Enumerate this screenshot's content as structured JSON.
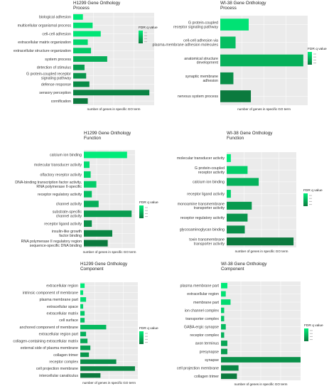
{
  "colors": {
    "plot_bg": "#ebebeb",
    "grid": "#ffffff",
    "fdr_low": "#00ee7a",
    "fdr_high": "#0b7a3e"
  },
  "legend_title": "FDR q value",
  "chart_data": [
    {
      "type": "bar",
      "orientation": "horizontal",
      "title": [
        "H1299 Gene Onthology",
        "Process"
      ],
      "xlabel": "number of genes in specific GO term",
      "ylabel": "",
      "grid": true,
      "legend": "right",
      "categories": [
        "biological adhesion",
        "multicellular organismal process",
        "cell-cell adhesion",
        "extracellular matrix organization",
        "extracellular structure organization",
        "system process",
        "detection of stimulus",
        "G protein-coupled receptor\nsignaling pathway",
        "defense response",
        "sensory perception",
        "cornification"
      ],
      "values": [
        6,
        12,
        17,
        9,
        11,
        21,
        7,
        8,
        10,
        47,
        9
      ],
      "fdr": [
        0.0001,
        0.0005,
        0.0003,
        0.0008,
        0.0012,
        0.0022,
        0.0028,
        0.0031,
        0.0034,
        0.0037,
        0.004
      ],
      "xlim": [
        0,
        50
      ]
    },
    {
      "type": "bar",
      "orientation": "horizontal",
      "title": [
        "WI-38 Gene Onthology",
        "Process"
      ],
      "xlabel": "number of genes in specific GO term",
      "ylabel": "",
      "grid": true,
      "legend": "right",
      "categories": [
        "G protein-coupled\nreceptor signaling pathway",
        "cell-cell adhesion via\nplasma-membrane adhesion molecules",
        "anatomical structure\ndevelopment",
        "synaptic membrane\nadhesion",
        "nervous system process"
      ],
      "values": [
        13,
        7,
        38,
        6,
        14
      ],
      "fdr": [
        0.0004,
        0.0016,
        0.0021,
        0.0032,
        0.0039
      ],
      "xlim": [
        0,
        40
      ]
    },
    {
      "type": "bar",
      "orientation": "horizontal",
      "title": [
        "H1299 Gene Onthology",
        "Function"
      ],
      "xlabel": "number of genes in specific GO term",
      "ylabel": "",
      "grid": true,
      "legend": "right",
      "categories": [
        "calcium ion binding",
        "molecular transducer activity",
        "olfactory receptor activity",
        "DNA-binding transcription factor activity,\nRNA polymerase II-specific",
        "receptor regulatory activity",
        "channel activity",
        "substrate-specific\nchannel activity",
        "receptor ligand activity",
        "insulin-like growth\nfactor binding",
        "RNA polymerase II regulatory region\nsequence-specific DNA binding"
      ],
      "values": [
        38,
        5,
        6,
        11,
        7,
        13,
        42,
        7,
        25,
        21
      ],
      "fdr": [
        0.0001,
        0.0006,
        0.0009,
        0.0011,
        0.0016,
        0.0022,
        0.0028,
        0.0032,
        0.0036,
        0.004
      ],
      "xlim": [
        0,
        45
      ]
    },
    {
      "type": "bar",
      "orientation": "horizontal",
      "title": [
        "WI-38 Gene Onthology",
        "Function"
      ],
      "xlabel": "number of genes in specific GO term",
      "ylabel": "",
      "grid": true,
      "legend": "right",
      "categories": [
        "molecular transducer activity",
        "G protein-coupled\nreceptor activity",
        "calcium ion binding",
        "receptor ligand activity",
        "monoamine transmembrane\ntransporter activity",
        "receptor regulatory activity",
        "glycosaminoglycan binding",
        "toxin transmembrane\ntransporter activity"
      ],
      "values": [
        3,
        15,
        23,
        3,
        18,
        15,
        13,
        48
      ],
      "fdr": [
        0.0001,
        0.0011,
        0.0021,
        0.0009,
        0.0029,
        0.0031,
        0.0033,
        0.004
      ],
      "xlim": [
        0,
        50
      ]
    },
    {
      "type": "bar",
      "orientation": "horizontal",
      "title": [
        "H1299 Gene Onthology",
        "Component"
      ],
      "xlabel": "number of genes in specific GO term",
      "ylabel": "",
      "grid": true,
      "legend": "right",
      "categories": [
        "extracellular region",
        "intrinsic component of membrane",
        "plasma membrane part",
        "extracellular space",
        "extracellular matrix",
        "cell surface",
        "anchored component of membrane",
        "extracellular region part",
        "collagen-containing extracellular matrix",
        "external side of plasma membrane",
        "collagen trimer",
        "receptor complex",
        "cell projection membrane",
        "intercellular canaliculus"
      ],
      "values": [
        3,
        2,
        4,
        2,
        3,
        3,
        18,
        4,
        5,
        7,
        6,
        25,
        38,
        14
      ],
      "fdr": [
        0.0001,
        0.0003,
        0.0006,
        0.0009,
        0.0012,
        0.0015,
        0.0018,
        0.0021,
        0.0024,
        0.0027,
        0.003,
        0.0033,
        0.0036,
        0.004
      ],
      "xlim": [
        0,
        40
      ]
    },
    {
      "type": "bar",
      "orientation": "horizontal",
      "title": [
        "WI-38 Gene Onthology",
        "Component"
      ],
      "xlabel": "number of genes in specific GO term",
      "ylabel": "",
      "grid": true,
      "legend": "right",
      "categories": [
        "plasma membrane part",
        "extracellular region",
        "membrane part",
        "ion channel complex",
        "transporter complex",
        "GABA-ergic synapse",
        "receptor complex",
        "axon terminus",
        "presynapse",
        "synapse",
        "cell projection membrane",
        "collagen trimer"
      ],
      "values": [
        4,
        3,
        6,
        2,
        2,
        3,
        2,
        4,
        4,
        50,
        11,
        10
      ],
      "fdr": [
        0.0001,
        0.0004,
        0.0007,
        0.0011,
        0.0014,
        0.0018,
        0.0021,
        0.0025,
        0.0028,
        0.0032,
        0.0036,
        0.004
      ],
      "xlim": [
        0,
        50
      ]
    }
  ]
}
